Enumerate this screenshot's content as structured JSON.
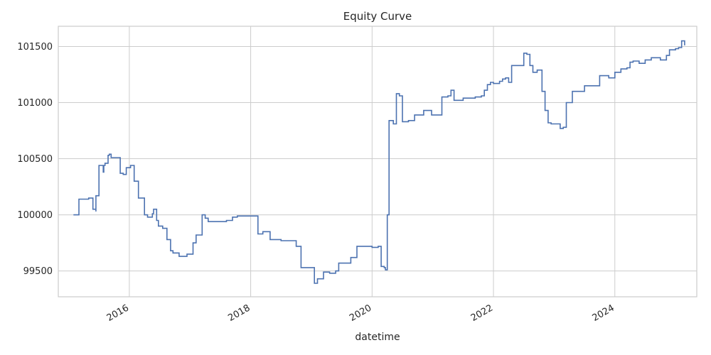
{
  "chart_data": {
    "type": "line",
    "title": "Equity Curve",
    "xlabel": "datetime",
    "ylabel": "",
    "xlim": [
      2014.83,
      2025.35
    ],
    "ylim": [
      99270,
      101680
    ],
    "grid": true,
    "x_ticks": [
      {
        "value": 2016,
        "label": "2016"
      },
      {
        "value": 2018,
        "label": "2018"
      },
      {
        "value": 2020,
        "label": "2020"
      },
      {
        "value": 2022,
        "label": "2022"
      },
      {
        "value": 2024,
        "label": "2024"
      }
    ],
    "y_ticks": [
      {
        "value": 99500,
        "label": "99500"
      },
      {
        "value": 100000,
        "label": "100000"
      },
      {
        "value": 100500,
        "label": "100500"
      },
      {
        "value": 101000,
        "label": "101000"
      },
      {
        "value": 101500,
        "label": "101500"
      }
    ],
    "series": [
      {
        "color": "#4c72b0",
        "x": [
          2015.08,
          2015.17,
          2015.17,
          2015.33,
          2015.33,
          2015.38,
          2015.4,
          2015.45,
          2015.45,
          2015.5,
          2015.5,
          2015.57,
          2015.58,
          2015.6,
          2015.65,
          2015.67,
          2015.7,
          2015.8,
          2015.85,
          2015.87,
          2015.9,
          2015.95,
          2016.02,
          2016.05,
          2016.08,
          2016.15,
          2016.2,
          2016.25,
          2016.3,
          2016.38,
          2016.4,
          2016.42,
          2016.45,
          2016.48,
          2016.55,
          2016.62,
          2016.68,
          2016.72,
          2016.82,
          2016.95,
          2017.02,
          2017.05,
          2017.1,
          2017.2,
          2017.25,
          2017.3,
          2017.5,
          2017.6,
          2017.7,
          2017.78,
          2017.85,
          2018.02,
          2018.12,
          2018.2,
          2018.28,
          2018.32,
          2018.4,
          2018.5,
          2018.6,
          2018.75,
          2018.83,
          2018.9,
          2019.0,
          2019.05,
          2019.1,
          2019.2,
          2019.3,
          2019.4,
          2019.45,
          2019.6,
          2019.65,
          2019.75,
          2019.85,
          2020.0,
          2020.1,
          2020.15,
          2020.2,
          2020.22,
          2020.25,
          2020.28,
          2020.3,
          2020.35,
          2020.4,
          2020.45,
          2020.5,
          2020.6,
          2020.7,
          2020.85,
          2020.98,
          2021.15,
          2021.25,
          2021.3,
          2021.35,
          2021.5,
          2021.7,
          2021.8,
          2021.85,
          2021.9,
          2021.95,
          2022.0,
          2022.1,
          2022.15,
          2022.2,
          2022.25,
          2022.3,
          2022.45,
          2022.5,
          2022.55,
          2022.6,
          2022.65,
          2022.72,
          2022.8,
          2022.85,
          2022.9,
          2022.95,
          2023.1,
          2023.15,
          2023.2,
          2023.3,
          2023.5,
          2023.6,
          2023.75,
          2023.8,
          2023.9,
          2024.0,
          2024.1,
          2024.2,
          2024.25,
          2024.3,
          2024.4,
          2024.5,
          2024.6,
          2024.75,
          2024.85,
          2024.9,
          2025.0,
          2025.05,
          2025.1,
          2025.15
        ],
        "y": [
          100000,
          100000,
          100140,
          100140,
          100150,
          100150,
          100050,
          100030,
          100170,
          100180,
          100440,
          100380,
          100440,
          100460,
          100530,
          100540,
          100510,
          100510,
          100370,
          100370,
          100360,
          100420,
          100440,
          100440,
          100300,
          100150,
          100150,
          100000,
          99980,
          100010,
          100050,
          100050,
          99950,
          99900,
          99880,
          99780,
          99680,
          99660,
          99630,
          99650,
          99650,
          99750,
          99820,
          100000,
          99970,
          99940,
          99940,
          99950,
          99980,
          99990,
          99990,
          99990,
          99830,
          99850,
          99850,
          99780,
          99780,
          99770,
          99770,
          99720,
          99530,
          99530,
          99530,
          99390,
          99430,
          99490,
          99480,
          99500,
          99570,
          99570,
          99620,
          99720,
          99720,
          99710,
          99720,
          99540,
          99530,
          99510,
          100000,
          100840,
          100840,
          100810,
          101080,
          101060,
          100830,
          100840,
          100890,
          100930,
          100890,
          101050,
          101060,
          101110,
          101020,
          101040,
          101050,
          101060,
          101110,
          101160,
          101180,
          101170,
          101190,
          101210,
          101220,
          101180,
          101330,
          101330,
          101440,
          101430,
          101330,
          101270,
          101290,
          101100,
          100930,
          100820,
          100810,
          100770,
          100780,
          101000,
          101100,
          101150,
          101150,
          101240,
          101240,
          101220,
          101270,
          101300,
          101310,
          101360,
          101370,
          101350,
          101380,
          101400,
          101380,
          101420,
          101470,
          101480,
          101490,
          101550,
          101510
        ]
      }
    ]
  }
}
